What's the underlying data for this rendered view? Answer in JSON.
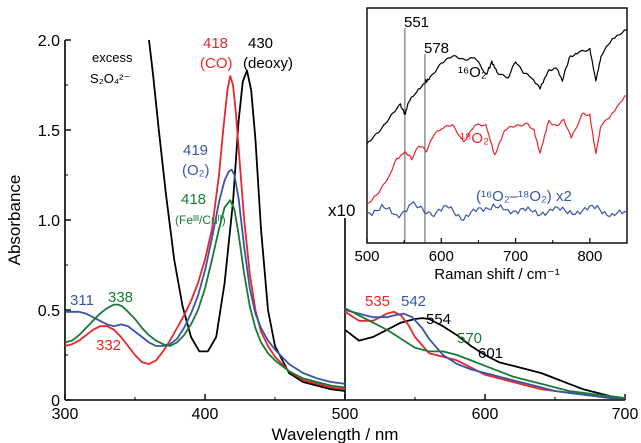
{
  "chart_data": {
    "type": "line",
    "xlabel": "Wavelength / nm",
    "ylabel": "Absorbance",
    "colors": {
      "black": "#000000",
      "red": "#e8262b",
      "blue": "#3b55a6",
      "green": "#1a7a35"
    },
    "left_panel": {
      "xlim": [
        300,
        500
      ],
      "ylim": [
        0,
        2.0
      ],
      "xticks": [
        "300",
        "400"
      ],
      "yticks": [
        "0",
        "0.5",
        "1.0",
        "1.5",
        "2.0"
      ],
      "series": [
        {
          "color": "black",
          "x": [
            360,
            363,
            367,
            372,
            378,
            384,
            390,
            396,
            402,
            408,
            414,
            420,
            424,
            427,
            430,
            433,
            436,
            440,
            445,
            450,
            460,
            470,
            480,
            490,
            500
          ],
          "y": [
            2.0,
            1.8,
            1.5,
            1.15,
            0.78,
            0.52,
            0.35,
            0.27,
            0.27,
            0.35,
            0.65,
            1.1,
            1.55,
            1.77,
            1.83,
            1.72,
            1.45,
            0.95,
            0.5,
            0.3,
            0.15,
            0.1,
            0.08,
            0.06,
            0.05
          ]
        },
        {
          "color": "red",
          "x": [
            300,
            305,
            310,
            315,
            320,
            325,
            330,
            335,
            340,
            345,
            350,
            355,
            360,
            365,
            370,
            375,
            380,
            385,
            390,
            395,
            400,
            405,
            410,
            413,
            416,
            418,
            420,
            422,
            425,
            428,
            432,
            436,
            440,
            445,
            450,
            460,
            470,
            480,
            490,
            500
          ],
          "y": [
            0.3,
            0.31,
            0.33,
            0.36,
            0.39,
            0.41,
            0.41,
            0.39,
            0.35,
            0.3,
            0.25,
            0.21,
            0.2,
            0.22,
            0.27,
            0.33,
            0.4,
            0.47,
            0.55,
            0.65,
            0.78,
            0.95,
            1.25,
            1.5,
            1.72,
            1.8,
            1.75,
            1.6,
            1.3,
            1.0,
            0.7,
            0.5,
            0.38,
            0.3,
            0.24,
            0.16,
            0.11,
            0.09,
            0.07,
            0.06
          ]
        },
        {
          "color": "blue",
          "x": [
            300,
            305,
            310,
            315,
            320,
            325,
            330,
            335,
            340,
            345,
            350,
            355,
            360,
            365,
            370,
            375,
            380,
            385,
            390,
            395,
            400,
            405,
            410,
            414,
            417,
            419,
            421,
            424,
            428,
            432,
            436,
            440,
            445,
            450,
            460,
            470,
            480,
            490,
            500
          ],
          "y": [
            0.49,
            0.49,
            0.49,
            0.48,
            0.46,
            0.44,
            0.42,
            0.41,
            0.42,
            0.41,
            0.38,
            0.35,
            0.32,
            0.3,
            0.3,
            0.31,
            0.34,
            0.4,
            0.48,
            0.58,
            0.72,
            0.9,
            1.1,
            1.22,
            1.27,
            1.28,
            1.25,
            1.12,
            0.85,
            0.62,
            0.48,
            0.4,
            0.33,
            0.28,
            0.2,
            0.15,
            0.12,
            0.1,
            0.09
          ]
        },
        {
          "color": "green",
          "x": [
            300,
            305,
            310,
            315,
            320,
            325,
            330,
            335,
            338,
            341,
            345,
            350,
            355,
            360,
            365,
            370,
            375,
            380,
            385,
            390,
            395,
            400,
            405,
            410,
            414,
            418,
            421,
            424,
            428,
            432,
            436,
            440,
            445,
            450,
            460,
            470,
            480,
            490,
            500
          ],
          "y": [
            0.32,
            0.33,
            0.36,
            0.4,
            0.44,
            0.48,
            0.51,
            0.53,
            0.53,
            0.52,
            0.49,
            0.45,
            0.4,
            0.36,
            0.33,
            0.31,
            0.3,
            0.32,
            0.36,
            0.42,
            0.5,
            0.62,
            0.78,
            0.95,
            1.07,
            1.11,
            1.06,
            0.92,
            0.7,
            0.52,
            0.4,
            0.32,
            0.26,
            0.22,
            0.16,
            0.12,
            0.1,
            0.08,
            0.07
          ]
        }
      ],
      "annotations": [
        {
          "text": "excess",
          "color": "black"
        },
        {
          "text": "S₂O₄²⁻",
          "color": "black"
        },
        {
          "text": "418",
          "color": "red"
        },
        {
          "text": "(CO)",
          "color": "red"
        },
        {
          "text": "430",
          "color": "black"
        },
        {
          "text": "(deoxy)",
          "color": "black"
        },
        {
          "text": "419",
          "color": "blue"
        },
        {
          "text": "(O₂)",
          "color": "blue"
        },
        {
          "text": "418",
          "color": "green"
        },
        {
          "text": "(Feᴵᴵᴵ/Cuᴵᴵ)",
          "color": "green"
        },
        {
          "text": "311",
          "color": "blue"
        },
        {
          "text": "338",
          "color": "green"
        },
        {
          "text": "332",
          "color": "red"
        }
      ]
    },
    "right_panel": {
      "multiplier_label": "x10",
      "xlim": [
        500,
        700
      ],
      "xticks": [
        "500",
        "600",
        "700"
      ],
      "series": [
        {
          "color": "black",
          "x": [
            500,
            510,
            520,
            530,
            540,
            550,
            555,
            560,
            570,
            580,
            590,
            600,
            610,
            620,
            630,
            640,
            650,
            660,
            670,
            680,
            690,
            700
          ],
          "y": [
            0.39,
            0.33,
            0.35,
            0.39,
            0.43,
            0.45,
            0.455,
            0.45,
            0.41,
            0.36,
            0.3,
            0.25,
            0.21,
            0.19,
            0.17,
            0.15,
            0.12,
            0.09,
            0.06,
            0.04,
            0.02,
            0.01
          ]
        },
        {
          "color": "red",
          "x": [
            500,
            510,
            520,
            530,
            535,
            540,
            545,
            550,
            560,
            570,
            580,
            590,
            600,
            610,
            620,
            630,
            640,
            650,
            660,
            670,
            680,
            690,
            700
          ],
          "y": [
            0.49,
            0.44,
            0.44,
            0.48,
            0.49,
            0.47,
            0.42,
            0.35,
            0.26,
            0.24,
            0.22,
            0.18,
            0.14,
            0.12,
            0.1,
            0.08,
            0.06,
            0.05,
            0.04,
            0.03,
            0.02,
            0.01,
            0.01
          ]
        },
        {
          "color": "blue",
          "x": [
            500,
            510,
            520,
            530,
            535,
            542,
            548,
            555,
            560,
            570,
            580,
            590,
            600,
            610,
            620,
            630,
            640,
            650,
            660,
            670,
            680,
            690,
            700
          ],
          "y": [
            0.5,
            0.48,
            0.46,
            0.46,
            0.47,
            0.48,
            0.46,
            0.4,
            0.34,
            0.25,
            0.2,
            0.17,
            0.15,
            0.13,
            0.11,
            0.09,
            0.07,
            0.05,
            0.04,
            0.03,
            0.02,
            0.01,
            0.01
          ]
        },
        {
          "color": "green",
          "x": [
            500,
            510,
            520,
            530,
            540,
            550,
            560,
            565,
            570,
            580,
            590,
            600,
            610,
            620,
            630,
            640,
            650,
            660,
            670,
            680,
            690,
            700
          ],
          "y": [
            0.51,
            0.47,
            0.43,
            0.39,
            0.34,
            0.29,
            0.27,
            0.27,
            0.27,
            0.25,
            0.22,
            0.19,
            0.16,
            0.13,
            0.11,
            0.09,
            0.07,
            0.05,
            0.04,
            0.03,
            0.02,
            0.01
          ]
        }
      ],
      "annotations": [
        {
          "text": "535",
          "color": "red"
        },
        {
          "text": "542",
          "color": "blue"
        },
        {
          "text": "554",
          "color": "black"
        },
        {
          "text": "570",
          "color": "green"
        },
        {
          "text": "601",
          "color": "black"
        }
      ]
    },
    "inset": {
      "type": "line",
      "xlabel": "Raman shift / cm⁻¹",
      "xlim": [
        500,
        850
      ],
      "xticks": [
        "500",
        "600",
        "700",
        "800"
      ],
      "marker_lines": [
        551,
        578
      ],
      "marker_labels": [
        "551",
        "578"
      ],
      "trace_labels": [
        {
          "text": "¹⁶O₂",
          "color": "black"
        },
        {
          "text": "¹⁸O₂",
          "color": "red"
        },
        {
          "text": "(¹⁶O₂–¹⁸O₂) x2",
          "color": "blue"
        }
      ],
      "series": [
        {
          "color": "black",
          "x": [
            500,
            515,
            530,
            545,
            551,
            556,
            565,
            578,
            585,
            600,
            615,
            630,
            645,
            660,
            668,
            675,
            690,
            700,
            710,
            720,
            733,
            745,
            755,
            763,
            772,
            785,
            800,
            808,
            815,
            830,
            850
          ],
          "y": [
            0.0,
            0.1,
            0.2,
            0.3,
            0.23,
            0.33,
            0.38,
            0.47,
            0.5,
            0.62,
            0.66,
            0.64,
            0.66,
            0.52,
            0.62,
            0.55,
            0.5,
            0.62,
            0.55,
            0.52,
            0.42,
            0.56,
            0.58,
            0.48,
            0.65,
            0.7,
            0.72,
            0.48,
            0.66,
            0.8,
            0.86
          ]
        },
        {
          "color": "red",
          "x": [
            500,
            515,
            530,
            540,
            551,
            560,
            570,
            580,
            590,
            600,
            615,
            630,
            645,
            660,
            672,
            685,
            700,
            715,
            725,
            733,
            745,
            755,
            765,
            775,
            790,
            800,
            808,
            815,
            830,
            850
          ],
          "y": [
            0.0,
            0.1,
            0.22,
            0.36,
            0.42,
            0.36,
            0.46,
            0.42,
            0.56,
            0.6,
            0.62,
            0.5,
            0.62,
            0.62,
            0.38,
            0.58,
            0.62,
            0.64,
            0.58,
            0.4,
            0.66,
            0.62,
            0.66,
            0.52,
            0.72,
            0.7,
            0.4,
            0.62,
            0.72,
            0.86
          ]
        },
        {
          "color": "blue",
          "x": [
            500,
            520,
            540,
            560,
            575,
            590,
            610,
            630,
            650,
            670,
            690,
            710,
            730,
            750,
            770,
            790,
            810,
            830,
            850
          ],
          "y": [
            0.0,
            0.02,
            -0.01,
            0.03,
            0.01,
            0.0,
            0.02,
            -0.02,
            0.01,
            0.03,
            0.0,
            0.02,
            -0.01,
            0.02,
            0.0,
            0.01,
            0.02,
            -0.01,
            0.0
          ]
        }
      ]
    }
  }
}
